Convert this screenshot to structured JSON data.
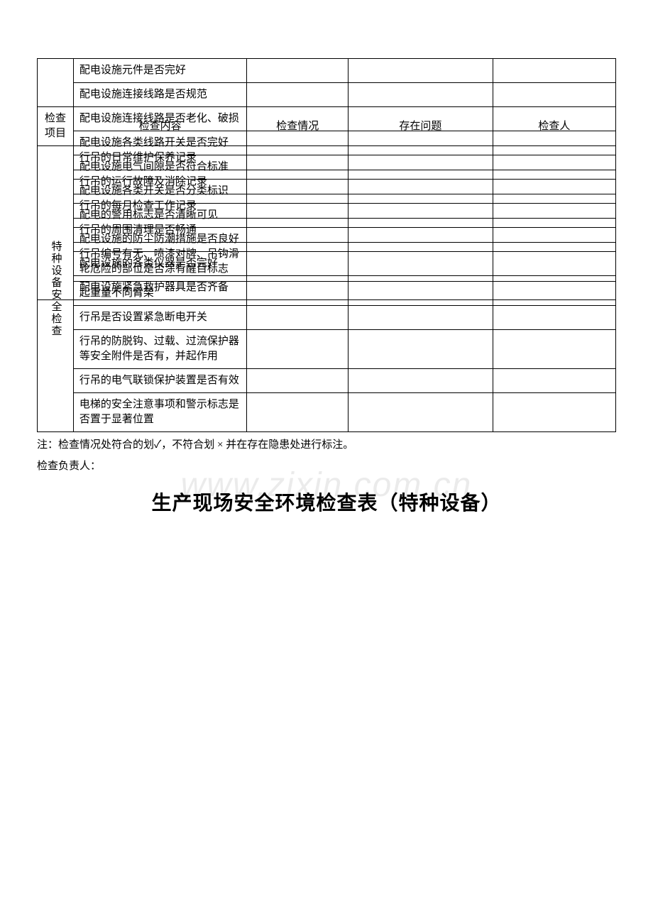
{
  "tableA": {
    "rows": [
      "配电设施元件是否完好",
      "配电设施连接线路是否规范",
      "配电设施连接线路是否老化、破损",
      "配电设施各类线路开关是否完好",
      "配电设施电气间隙是否符合标准",
      "配电设施各类开关是否分类标识",
      "配电的警用标志是否清晰可见",
      "配电设施的防尘防潮措施是否良好",
      "配电设施的各类仪器是否完好",
      "配电设施紧急救护器具是否齐备"
    ]
  },
  "tableB": {
    "header": {
      "cat": "检查项目",
      "content": "检查内容",
      "status": "检查情况",
      "problem": "存在问题",
      "inspector": "检查人"
    },
    "catLabel": "特种设备安全检查",
    "rows": [
      "行吊的日常维护保养记录",
      "行吊的运行故障及消除记录",
      "行吊的每月检查工作记录",
      "行吊的周围清理是否畅通",
      "行吊编号有无、喷漆对牌、吊钩滑轮危险的部位是否涂有醒目标志",
      "起重量不同臂架",
      "行吊是否设置紧急断电开关",
      "行吊的防脱钩、过载、过流保护器等安全附件是否有，并起作用",
      "行吊的电气联锁保护装置是否有效",
      "电梯的安全注意事项和警示标志是否置于显著位置"
    ]
  },
  "note1": "注：检查情况处符合的划✓，不符合划 × 并在存在隐患处进行标注。",
  "note2": "检查负责人：",
  "title": "生产现场安全环境检查表（特种设备）",
  "watermark": "www.zixin.com.cn",
  "colors": {
    "border": "#000000",
    "text": "#000000",
    "bg": "#ffffff",
    "wm": "rgba(0,0,0,0.08)"
  }
}
